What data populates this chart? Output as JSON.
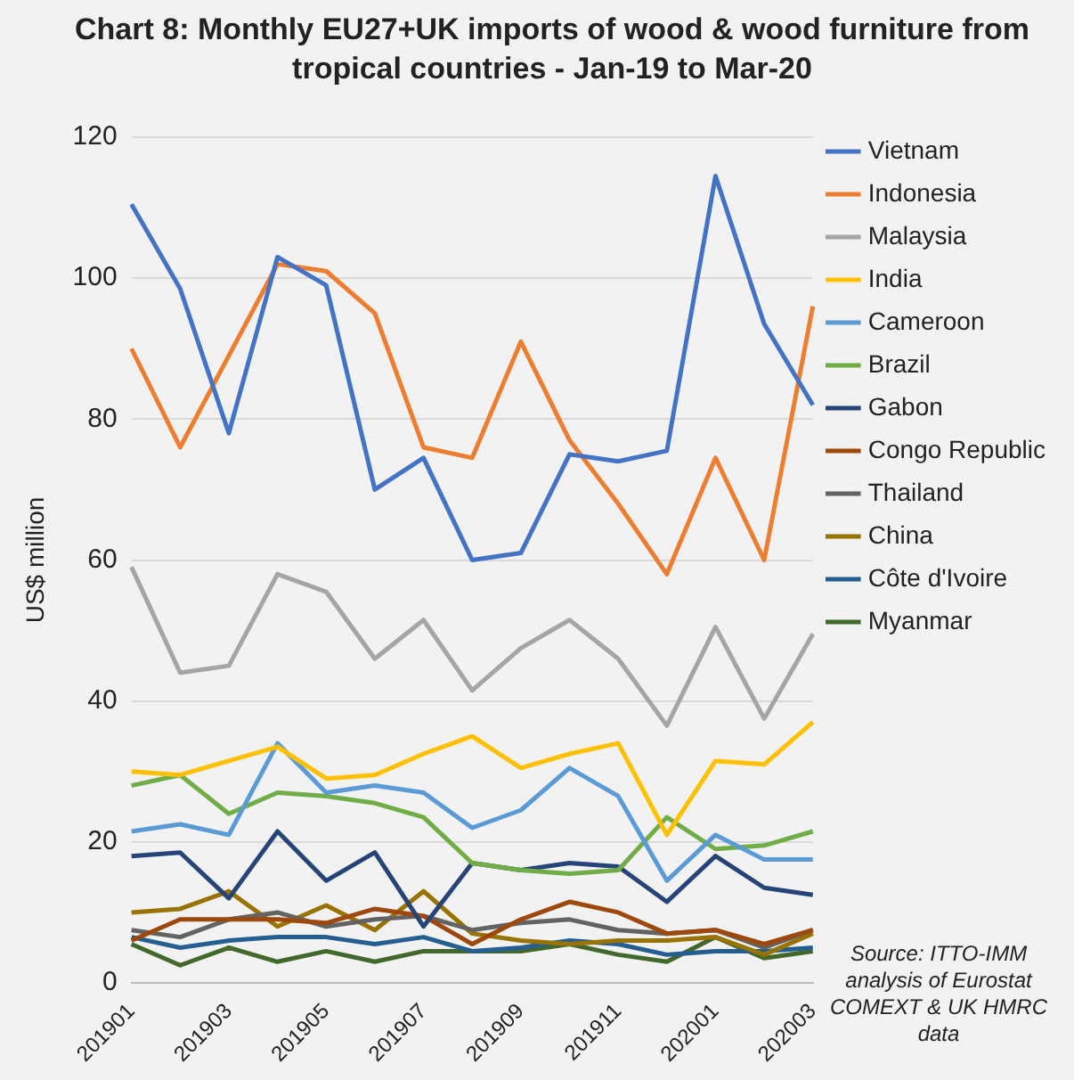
{
  "chart_data": {
    "type": "line",
    "title": "Chart 8: Monthly EU27+UK imports of wood & wood furniture from tropical countries - Jan-19 to Mar-20",
    "ylabel": "US$ million",
    "categories": [
      "201901",
      null,
      "201903",
      null,
      "201905",
      null,
      "201907",
      null,
      "201909",
      null,
      "201911",
      null,
      "202001",
      null,
      "202003"
    ],
    "series": [
      {
        "name": "Vietnam",
        "color": "#4472c4",
        "values": [
          110.5,
          98.5,
          78,
          103,
          99,
          70,
          74.5,
          60,
          61,
          75,
          74,
          75.5,
          114.5,
          93.5,
          82
        ]
      },
      {
        "name": "Indonesia",
        "color": "#ed7d31",
        "values": [
          90,
          76,
          89,
          102,
          101,
          95,
          76,
          74.5,
          91,
          77,
          68,
          58,
          74.5,
          60,
          96
        ]
      },
      {
        "name": "Malaysia",
        "color": "#a5a5a5",
        "values": [
          59,
          44,
          45,
          58,
          55.5,
          46,
          51.5,
          41.5,
          47.5,
          51.5,
          46,
          36.5,
          50.5,
          37.5,
          49.5
        ]
      },
      {
        "name": "India",
        "color": "#ffc000",
        "values": [
          30,
          29.5,
          31.5,
          33.5,
          29,
          29.5,
          32.5,
          35,
          30.5,
          32.5,
          34,
          21,
          31.5,
          31,
          37
        ]
      },
      {
        "name": "Cameroon",
        "color": "#5b9bd5",
        "values": [
          21.5,
          22.5,
          21,
          34,
          27,
          28,
          27,
          22,
          24.5,
          30.5,
          26.5,
          14.5,
          21,
          17.5,
          17.5
        ]
      },
      {
        "name": "Brazil",
        "color": "#70ad47",
        "values": [
          28,
          29.5,
          24,
          27,
          26.5,
          25.5,
          23.5,
          17,
          16,
          15.5,
          16,
          23.5,
          19,
          19.5,
          21.5
        ]
      },
      {
        "name": "Gabon",
        "color": "#264478",
        "values": [
          18,
          18.5,
          12,
          21.5,
          14.5,
          18.5,
          8,
          17,
          16,
          17,
          16.5,
          11.5,
          18,
          13.5,
          12.5
        ]
      },
      {
        "name": "Congo Republic",
        "color": "#9e480e",
        "values": [
          6,
          9,
          9,
          9,
          8.5,
          10.5,
          9.5,
          5.5,
          9,
          11.5,
          10,
          7,
          7.5,
          5.5,
          7.5
        ]
      },
      {
        "name": "Thailand",
        "color": "#636363",
        "values": [
          7.5,
          6.5,
          9,
          10,
          8,
          9,
          9.5,
          7.5,
          8.5,
          9,
          7.5,
          7,
          7.5,
          5,
          7.5
        ]
      },
      {
        "name": "China",
        "color": "#997300",
        "values": [
          10,
          10.5,
          13,
          8,
          11,
          7.5,
          13,
          7,
          6,
          5.5,
          6,
          6,
          6.5,
          4,
          7
        ]
      },
      {
        "name": "Côte d'Ivoire",
        "color": "#255e91",
        "values": [
          6.5,
          5,
          6,
          6.5,
          6.5,
          5.5,
          6.5,
          4.5,
          5,
          6,
          5.5,
          4,
          4.5,
          4.5,
          5
        ]
      },
      {
        "name": "Myanmar",
        "color": "#43682b",
        "values": [
          5.5,
          2.5,
          5,
          3,
          4.5,
          3,
          4.5,
          4.5,
          4.5,
          5.5,
          4,
          3,
          6.5,
          3.5,
          4.5
        ]
      }
    ],
    "ylim": [
      0,
      120
    ],
    "yticks": [
      0,
      20,
      40,
      60,
      80,
      100,
      120
    ],
    "grid": "y",
    "legend": "right",
    "marker": "none",
    "line_style": "solid",
    "annotations": [
      "Source: ITTO-IMM analysis of Eurostat COMEXT & UK HMRC data"
    ]
  }
}
